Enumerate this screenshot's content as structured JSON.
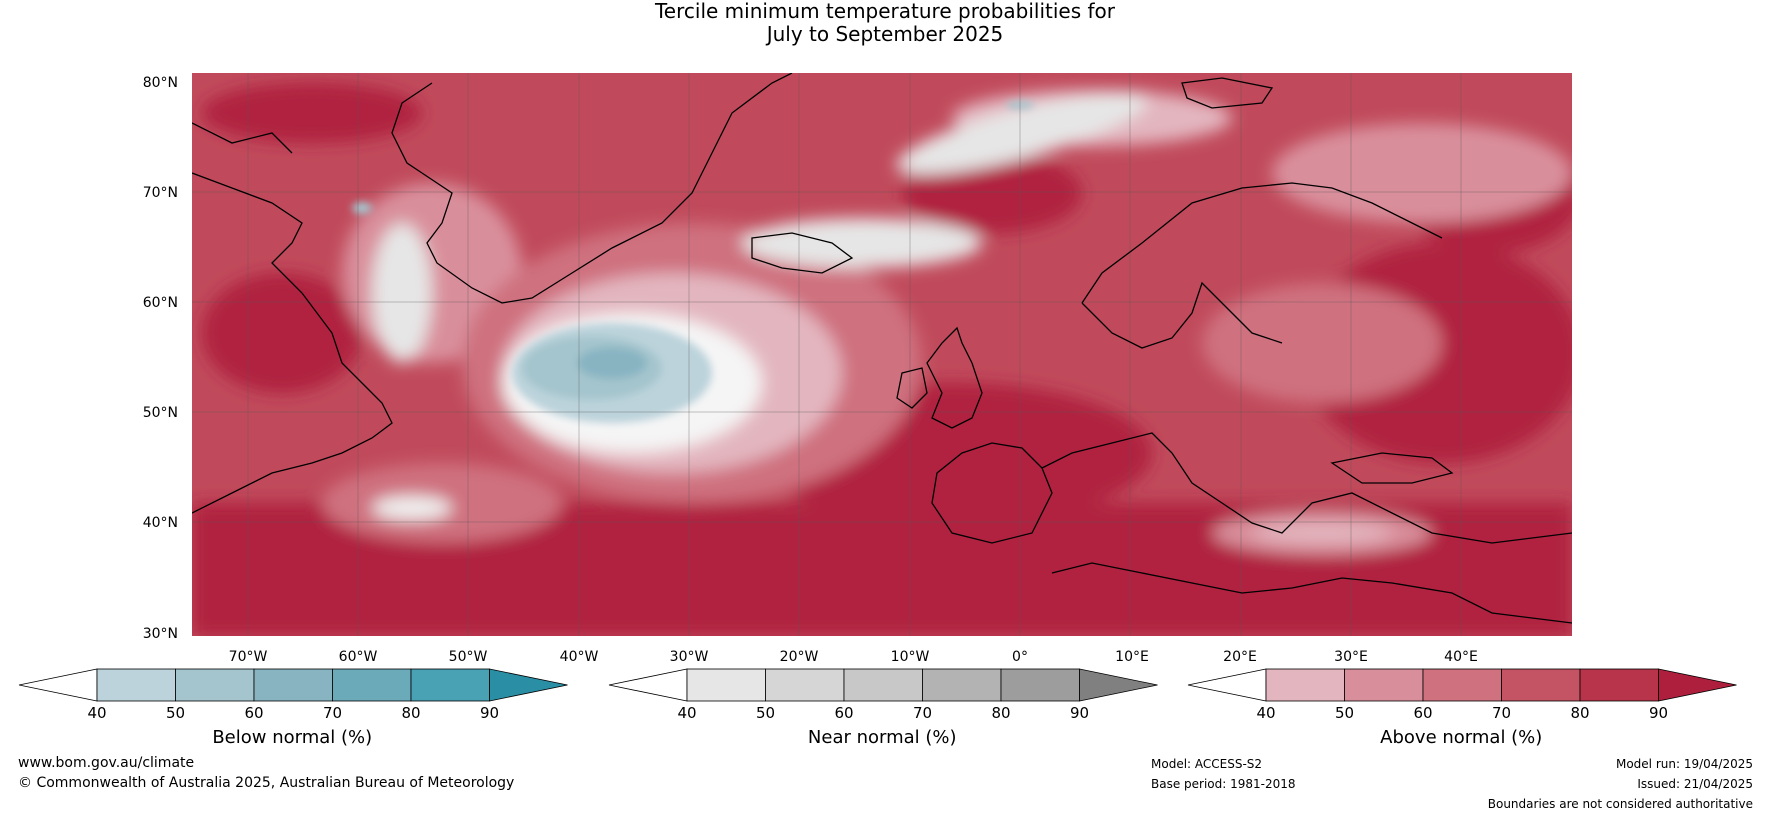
{
  "title": {
    "line1": "Tercile minimum temperature probabilities for",
    "line2": "July to September 2025"
  },
  "axes": {
    "lat_labels": [
      "80°N",
      "70°N",
      "60°N",
      "50°N",
      "40°N",
      "30°N"
    ],
    "lon_labels": [
      "70°W",
      "60°W",
      "50°W",
      "40°W",
      "30°W",
      "20°W",
      "10°W",
      "0°",
      "10°E",
      "20°E",
      "30°E",
      "40°E"
    ]
  },
  "legends": [
    {
      "label": "Below normal (%)",
      "ticks": [
        "40",
        "50",
        "60",
        "70",
        "80",
        "90"
      ],
      "colors": [
        "#ffffff",
        "#bcd3db",
        "#a4c5cd",
        "#88b4c2",
        "#6aaab9",
        "#48a2b3",
        "#2a8fa5"
      ]
    },
    {
      "label": "Near normal (%)",
      "ticks": [
        "40",
        "50",
        "60",
        "70",
        "80",
        "90"
      ],
      "colors": [
        "#ffffff",
        "#e6e6e6",
        "#d6d6d6",
        "#c8c8c8",
        "#b3b3b3",
        "#9d9d9d",
        "#808080"
      ]
    },
    {
      "label": "Above normal (%)",
      "ticks": [
        "40",
        "50",
        "60",
        "70",
        "80",
        "90"
      ],
      "colors": [
        "#ffffff",
        "#e3b6bf",
        "#d98f9b",
        "#cf717f",
        "#c45364",
        "#b8344a",
        "#ad1f3c"
      ]
    }
  ],
  "footer": {
    "website": "www.bom.gov.au/climate",
    "copyright": "© Commonwealth of Australia 2025, Australian Bureau of Meteorology",
    "model": "Model: ACCESS-S2",
    "base_period": "Base period: 1981-2018",
    "model_run": "Model run: 19/04/2025",
    "issued": "Issued: 21/04/2025",
    "disclaimer": "Boundaries are not considered authoritative"
  }
}
